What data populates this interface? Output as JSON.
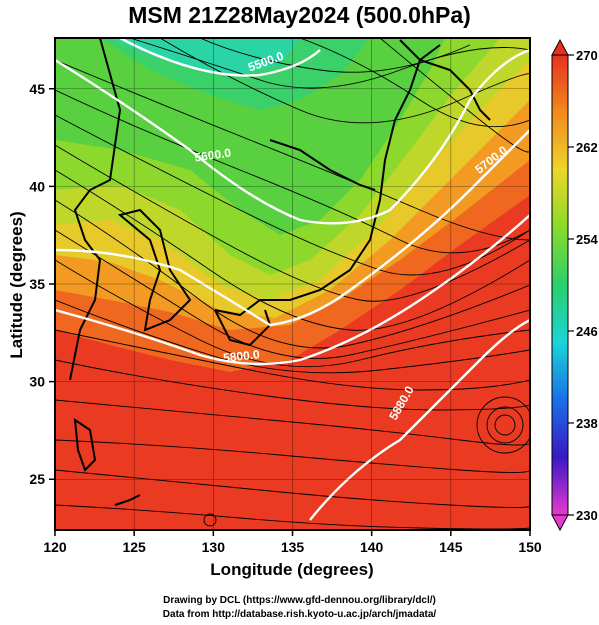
{
  "title": "MSM 21Z28May2024 (500.0hPa)",
  "map": {
    "x_axis_label": "Longitude (degrees)",
    "y_axis_label": "Latitude  (degrees)",
    "x_ticks": [
      120,
      125,
      130,
      135,
      140,
      145,
      150
    ],
    "y_ticks": [
      25,
      30,
      35,
      40,
      45
    ],
    "x_range": [
      120,
      150
    ],
    "y_range": [
      22.4,
      47.6
    ],
    "contour_labels": [
      {
        "text": "5500.0",
        "lon": 133.4,
        "lat": 46.2,
        "angle": -20
      },
      {
        "text": "5600.0",
        "lon": 130.0,
        "lat": 41.4,
        "angle": -8
      },
      {
        "text": "5700.0",
        "lon": 147.7,
        "lat": 41.2,
        "angle": -38
      },
      {
        "text": "5800.0",
        "lon": 131.8,
        "lat": 31.1,
        "angle": -6
      },
      {
        "text": "5880.0",
        "lon": 142.1,
        "lat": 28.8,
        "angle": -60
      }
    ],
    "contour_color": "#ffffff"
  },
  "colorbar": {
    "title_values": [
      "270",
      "262",
      "254",
      "246",
      "238",
      "230"
    ],
    "min": 230,
    "max": 270,
    "colors": [
      "#e83ad0",
      "#3a18c4",
      "#1a70e8",
      "#1ad4d8",
      "#2ad06a",
      "#88da2a",
      "#ecd62a",
      "#f28a1e",
      "#e8301e"
    ]
  },
  "footer": {
    "line1": "Drawing by DCL (https://www.gfd-dennou.org/library/dcl/)",
    "line2": "Data from http://database.rish.kyoto-u.ac.jp/arch/jmadata/"
  }
}
